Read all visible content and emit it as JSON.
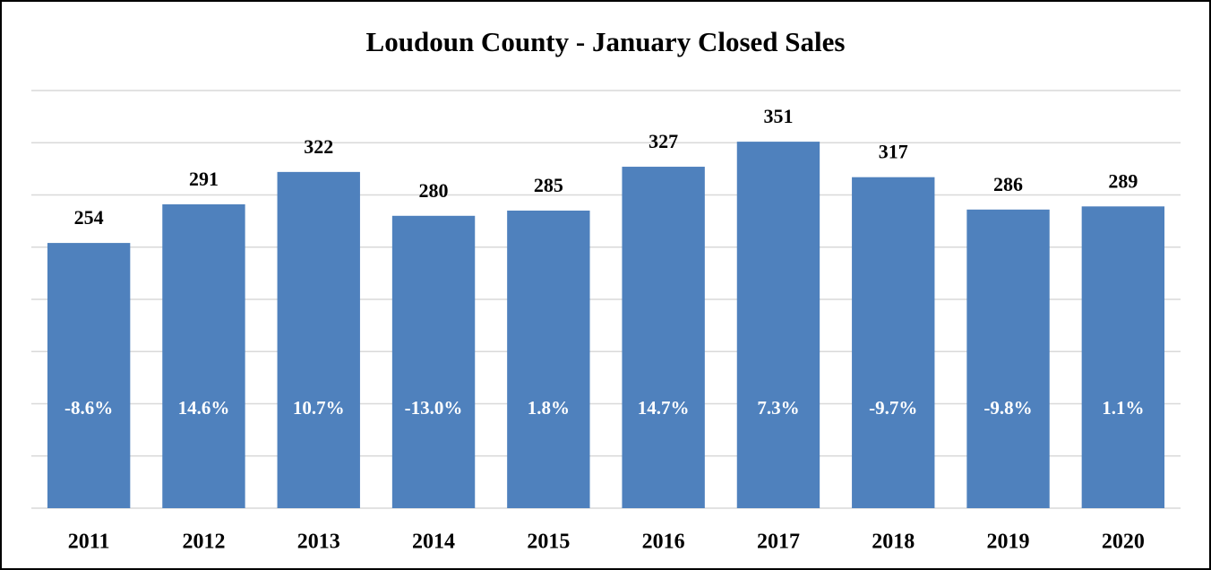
{
  "chart_data": {
    "type": "bar",
    "title": "Loudoun County - January Closed Sales",
    "categories": [
      "2011",
      "2012",
      "2013",
      "2014",
      "2015",
      "2016",
      "2017",
      "2018",
      "2019",
      "2020"
    ],
    "values": [
      254,
      291,
      322,
      280,
      285,
      327,
      351,
      317,
      286,
      289
    ],
    "annotations": [
      "-8.6%",
      "14.6%",
      "10.7%",
      "-13.0%",
      "1.8%",
      "14.7%",
      "7.3%",
      "-9.7%",
      "-9.8%",
      "1.1%"
    ],
    "color": "#4f81bd",
    "ylim": [
      0,
      400
    ],
    "yticks": [
      0,
      50,
      100,
      150,
      200,
      250,
      300,
      350,
      400
    ],
    "grid": true
  }
}
